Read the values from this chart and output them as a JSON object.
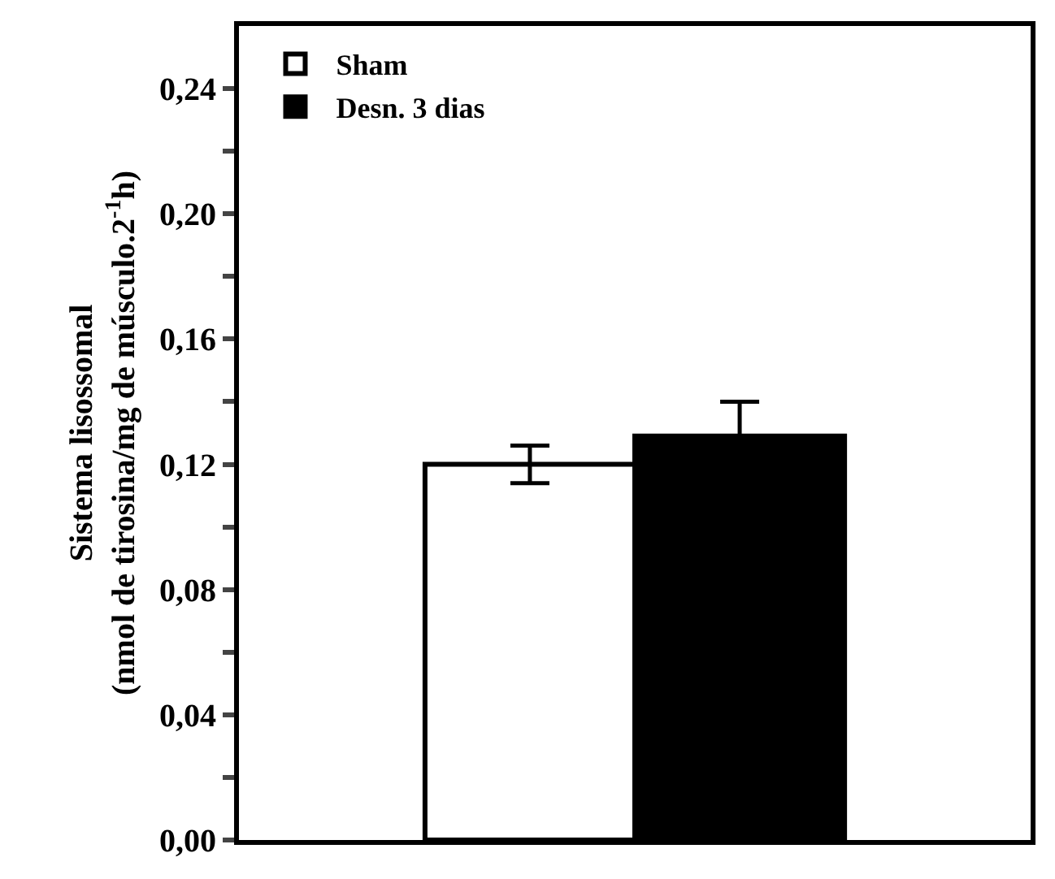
{
  "chart_data": {
    "type": "bar",
    "ylabel": "Sistema lisossomal\n(nmol de tirosina/mg de músculo.2$^{-1}$h)",
    "categories": [
      null
    ],
    "series": [
      {
        "name": "Sham",
        "color": "#ffffff",
        "values": [
          0.12
        ],
        "errors": [
          0.006
        ]
      },
      {
        "name": "Desn. 3 dias",
        "color": "#000000",
        "values": [
          0.129
        ],
        "errors": [
          0.011
        ]
      }
    ],
    "ylim": [
      0,
      0.26
    ],
    "yticks": [
      {
        "value": 0,
        "label": "0,00"
      },
      {
        "value": 0.02,
        "label": null
      },
      {
        "value": 0.04,
        "label": "0,04"
      },
      {
        "value": 0.06,
        "label": null
      },
      {
        "value": 0.08,
        "label": "0,08"
      },
      {
        "value": 0.1,
        "label": null
      },
      {
        "value": 0.12,
        "label": "0,12"
      },
      {
        "value": 0.14,
        "label": null
      },
      {
        "value": 0.16,
        "label": "0,16"
      },
      {
        "value": 0.18,
        "label": null
      },
      {
        "value": 0.2,
        "label": "0,20"
      },
      {
        "value": 0.22,
        "label": null
      },
      {
        "value": 0.24,
        "label": "0,24"
      }
    ],
    "legend": "top left",
    "tick_labels": "y"
  }
}
